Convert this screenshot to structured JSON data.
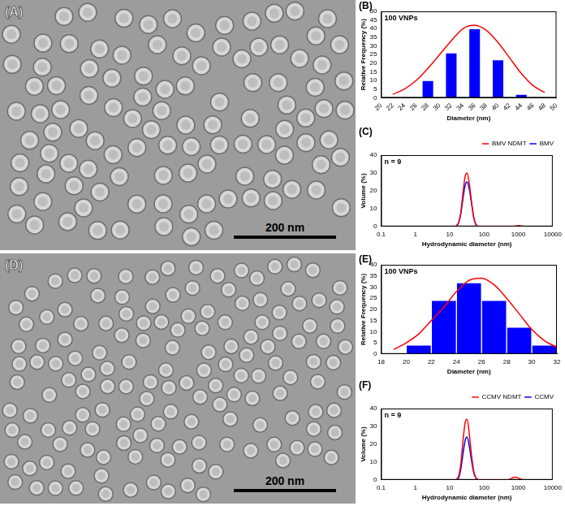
{
  "images": [
    {
      "panel": "(A)",
      "scale_bar": "200 nm"
    },
    {
      "panel": "(D)",
      "scale_bar": "200 nm"
    }
  ],
  "chart_data": [
    {
      "panel": "(B)",
      "type": "histogram",
      "annotations": [
        "100 VNPs"
      ],
      "x_label": "Diameter (nm)",
      "y_label": "Relative Frequency (%)",
      "bins": [
        26,
        30,
        34,
        38,
        42,
        46
      ],
      "values": [
        10,
        26,
        40,
        22,
        2
      ],
      "color": "#0000ff",
      "series": [
        {
          "type": "line",
          "color": "#ff0000",
          "x": [
            22,
            24,
            26,
            28,
            30,
            32,
            34,
            36,
            38,
            40,
            42,
            44,
            46,
            48
          ],
          "values": [
            2,
            5,
            10,
            17,
            25,
            33,
            40,
            42,
            39,
            32,
            23,
            14,
            7,
            3
          ]
        }
      ],
      "xlim": [
        20,
        50
      ],
      "xticks": [
        20,
        22,
        24,
        26,
        28,
        30,
        32,
        34,
        36,
        38,
        40,
        42,
        44,
        46,
        48,
        50
      ],
      "ylim": [
        0,
        50
      ],
      "yticks": [
        0,
        5,
        10,
        15,
        20,
        25,
        30,
        35,
        40,
        45,
        50
      ],
      "grid": false
    },
    {
      "panel": "(C)",
      "type": "line",
      "annotations": [
        "n = 9"
      ],
      "x_label": "Hydrodynamic diameter (nm)",
      "y_label": "Volume (%)",
      "log": "x",
      "legend": "top-right",
      "series": [
        {
          "name": "BMV NDMT",
          "color": "#ff0000",
          "x": [
            15,
            18,
            21,
            24,
            28,
            32,
            37,
            43,
            50,
            58,
            68,
            700,
            1000,
            1400
          ],
          "values": [
            0,
            2,
            8,
            18,
            28,
            30,
            24,
            14,
            5,
            1,
            0,
            0,
            0.5,
            0
          ]
        },
        {
          "name": "BMV",
          "color": "#0000ff",
          "x": [
            15,
            18,
            21,
            24,
            28,
            32,
            37,
            43,
            50,
            58,
            68
          ],
          "values": [
            0,
            2,
            7,
            15,
            23,
            25,
            21,
            13,
            5,
            1,
            0
          ]
        }
      ],
      "xlim": [
        0.1,
        10000
      ],
      "xticks": [
        0.1,
        1,
        10,
        100,
        1000,
        10000
      ],
      "ylim": [
        0,
        40
      ],
      "yticks": [
        0,
        10,
        20,
        30,
        40
      ],
      "grid": false
    },
    {
      "panel": "(E)",
      "type": "histogram",
      "annotations": [
        "100 VNPs"
      ],
      "x_label": "Diameter (nm)",
      "y_label": "Relative Frequency (%)",
      "bins": [
        20,
        22,
        24,
        26,
        28,
        30,
        32
      ],
      "values": [
        4,
        24,
        32,
        24,
        12,
        4
      ],
      "color": "#0000ff",
      "series": [
        {
          "type": "line",
          "color": "#ff0000",
          "x": [
            19,
            20,
            21,
            22,
            23,
            24,
            25,
            26,
            27,
            28,
            29,
            30,
            31,
            32
          ],
          "values": [
            2,
            5,
            9,
            15,
            21,
            28,
            33,
            34,
            31,
            25,
            18,
            11,
            6,
            3
          ]
        }
      ],
      "xlim": [
        18,
        32
      ],
      "xticks": [
        18,
        20,
        22,
        24,
        26,
        28,
        30,
        32
      ],
      "ylim": [
        0,
        40
      ],
      "yticks": [
        0,
        5,
        10,
        15,
        20,
        25,
        30,
        35,
        40
      ],
      "grid": false
    },
    {
      "panel": "(F)",
      "type": "line",
      "annotations": [
        "n = 9"
      ],
      "x_label": "Hydrodynamic diameter (nm)",
      "y_label": "Volume (%)",
      "log": "x",
      "legend": "top-right",
      "series": [
        {
          "name": "CCMV NDMT",
          "color": "#ff0000",
          "x": [
            15,
            18,
            21,
            24,
            28,
            32,
            37,
            43,
            50,
            58,
            68,
            500,
            650,
            800,
            1000,
            1300
          ],
          "values": [
            0,
            2,
            9,
            21,
            32,
            34,
            26,
            14,
            5,
            1,
            0,
            0,
            1,
            1.5,
            1,
            0
          ]
        },
        {
          "name": "CCMV",
          "color": "#0000ff",
          "x": [
            15,
            18,
            21,
            24,
            28,
            32,
            37,
            43,
            50,
            58,
            68
          ],
          "values": [
            0,
            1,
            6,
            14,
            22,
            24,
            19,
            11,
            4,
            1,
            0
          ]
        }
      ],
      "xlim": [
        0.1,
        10000
      ],
      "xticks": [
        0.1,
        1,
        10,
        100,
        1000,
        10000
      ],
      "ylim": [
        0,
        40
      ],
      "yticks": [
        0,
        10,
        20,
        30,
        40
      ],
      "grid": false
    }
  ]
}
